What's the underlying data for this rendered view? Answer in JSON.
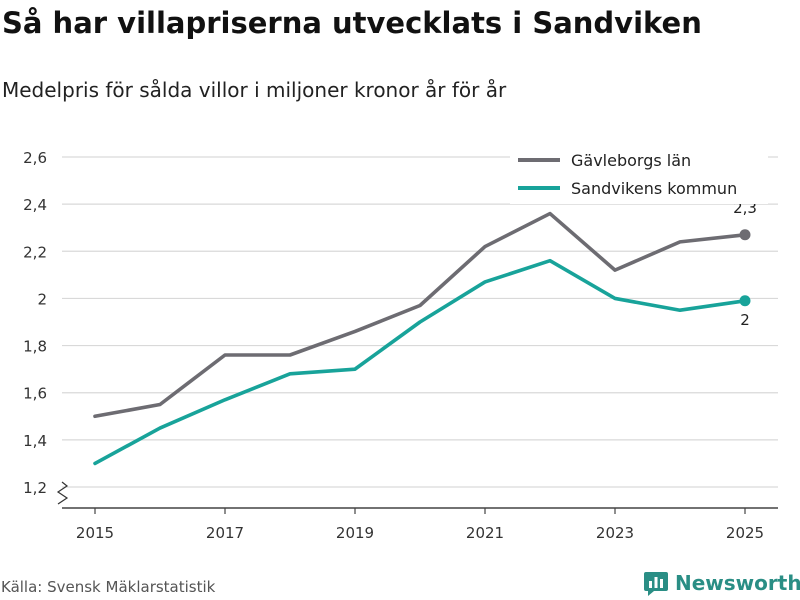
{
  "title": "Så har villapriserna utvecklats i Sandviken",
  "subtitle": "Medelpris för sålda villor i miljoner kronor år för år",
  "source": "Källa: Svensk Mäklarstatistik",
  "brand": "Newsworthy",
  "colors": {
    "gavleborg": "#6d6c72",
    "sandviken": "#18a39a",
    "grid": "#d9d9d9",
    "axis": "#444444",
    "brand": "#2a8e85"
  },
  "chart_data": {
    "type": "line",
    "x": [
      2015,
      2016,
      2017,
      2018,
      2019,
      2020,
      2021,
      2022,
      2023,
      2024,
      2025
    ],
    "series": [
      {
        "name": "Gävleborgs län",
        "values": [
          1.5,
          1.55,
          1.76,
          1.76,
          1.86,
          1.97,
          2.22,
          2.36,
          2.12,
          2.24,
          2.27
        ],
        "end_label": "2,3"
      },
      {
        "name": "Sandvikens kommun",
        "values": [
          1.3,
          1.45,
          1.57,
          1.68,
          1.7,
          1.9,
          2.07,
          2.16,
          2.0,
          1.95,
          1.99
        ],
        "end_label": "2"
      }
    ],
    "xticks": [
      2015,
      2017,
      2019,
      2021,
      2023,
      2025
    ],
    "xtick_labels": [
      "2015",
      "2017",
      "2019",
      "2021",
      "2023",
      "2025"
    ],
    "yticks": [
      1.2,
      1.4,
      1.6,
      1.8,
      2.0,
      2.2,
      2.4,
      2.6
    ],
    "ytick_labels": [
      "1,2",
      "1,4",
      "1,6",
      "1,8",
      "2",
      "2,2",
      "2,4",
      "2,6"
    ],
    "ylim": [
      1.2,
      2.6
    ],
    "xlabel": "",
    "ylabel": "",
    "legend_position": "top-right",
    "grid": true,
    "axis_break": true
  }
}
